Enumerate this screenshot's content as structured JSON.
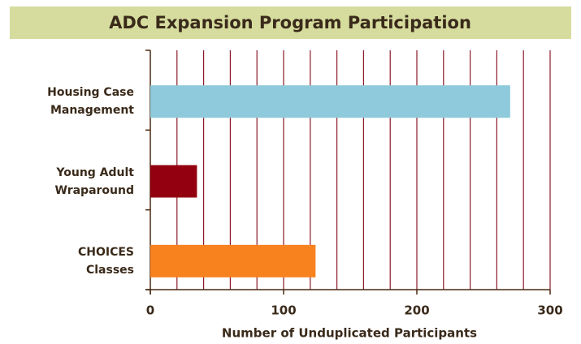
{
  "chart_data": {
    "type": "bar",
    "orientation": "horizontal",
    "title": "ADC Expansion Program Participation",
    "xlabel": "Number of Unduplicated Participants",
    "categories": [
      "Housing Case Management",
      "Young Adult Wraparound",
      "CHOICES Classes"
    ],
    "values": [
      270,
      35,
      124
    ],
    "colors": [
      "#8ecadb",
      "#93000f",
      "#f7821e"
    ],
    "xlim": [
      0,
      300
    ],
    "xticks": [
      0,
      100,
      200,
      300
    ],
    "xgridlines": [
      20,
      40,
      60,
      80,
      100,
      120,
      140,
      160,
      180,
      200,
      220,
      240,
      260,
      280,
      300
    ],
    "grid": true
  }
}
